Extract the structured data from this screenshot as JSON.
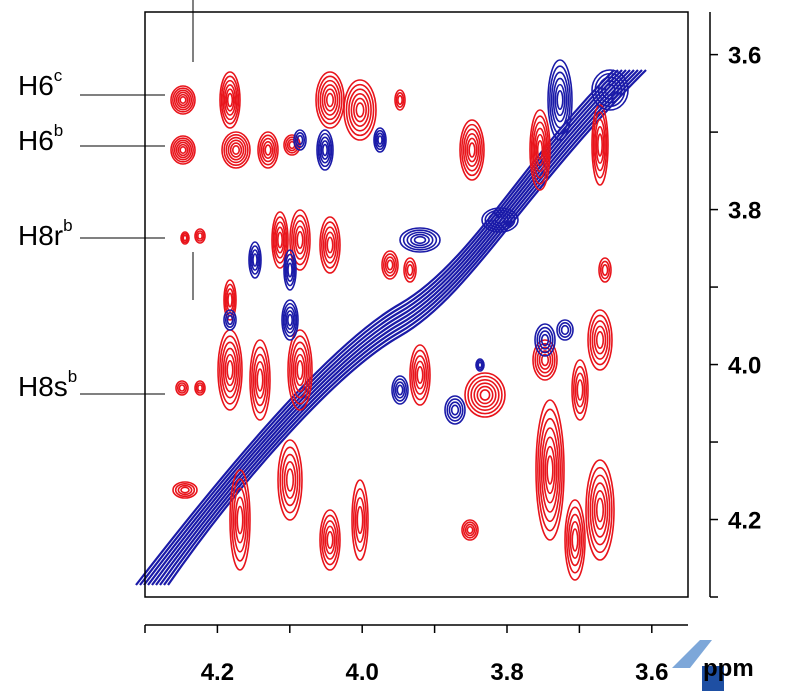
{
  "chart_data": {
    "type": "contour",
    "x_label": "ppm",
    "xlim": [
      4.3,
      3.55
    ],
    "xticks": [
      {
        "value": 4.2,
        "label": "4.2"
      },
      {
        "value": 4,
        "label": "4.0"
      },
      {
        "value": 3.8,
        "label": "3.8"
      },
      {
        "value": 3.6,
        "label": "3.6"
      }
    ],
    "xminor_ticks": [
      4.3,
      4.1,
      3.9,
      3.7
    ],
    "ylim": [
      3.545,
      4.3
    ],
    "yticks": [
      {
        "value": 3.6,
        "label": "3.6"
      },
      {
        "value": 3.8,
        "label": "3.8"
      },
      {
        "value": 4,
        "label": "4.0"
      },
      {
        "value": 4.2,
        "label": "4.2"
      }
    ],
    "yminor_ticks": [
      3.7,
      3.9,
      4.1,
      4.3
    ],
    "positive_color": "#e8141b",
    "negative_color": "#1a1aa8",
    "annotations": [
      {
        "text": "H6",
        "sup": "c"
      },
      {
        "text": "H6",
        "sup": "b"
      },
      {
        "text": "H8r",
        "sup": "b"
      },
      {
        "text": "H8s",
        "sup": "b"
      }
    ]
  }
}
